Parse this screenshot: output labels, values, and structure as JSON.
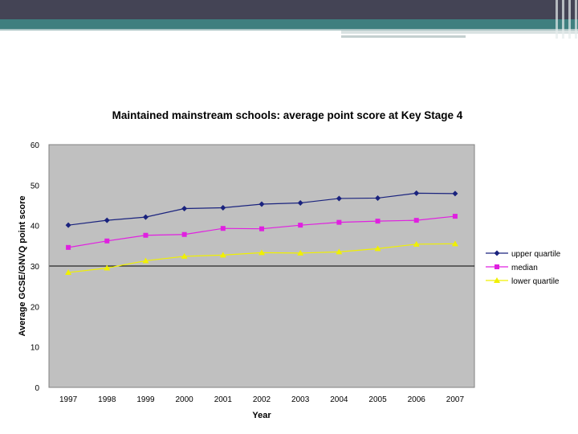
{
  "chart_data": {
    "type": "line",
    "title": "Maintained mainstream schools: average point score at Key Stage 4",
    "xlabel": "Year",
    "ylabel": "Average GCSE/GNVQ point score",
    "categories": [
      "1997",
      "1998",
      "1999",
      "2000",
      "2001",
      "2002",
      "2003",
      "2004",
      "2005",
      "2006",
      "2007"
    ],
    "ylim": [
      0,
      60
    ],
    "yticks": [
      0,
      10,
      20,
      30,
      40,
      50,
      60
    ],
    "grid": false,
    "legend": "right",
    "series": [
      {
        "name": "upper quartile",
        "color": "#1a237e",
        "marker": "diamond",
        "values": [
          40.1,
          41.3,
          42.1,
          44.2,
          44.4,
          45.3,
          45.6,
          46.7,
          46.8,
          48.0,
          47.9
        ]
      },
      {
        "name": "median",
        "color": "#e020e0",
        "marker": "square",
        "values": [
          34.6,
          36.2,
          37.6,
          37.8,
          39.3,
          39.2,
          40.1,
          40.8,
          41.1,
          41.3,
          42.3
        ]
      },
      {
        "name": "lower quartile",
        "color": "#f0f000",
        "marker": "triangle",
        "values": [
          28.4,
          29.5,
          31.3,
          32.4,
          32.7,
          33.3,
          33.2,
          33.5,
          34.3,
          35.4,
          35.5
        ]
      }
    ],
    "reference_line": 30,
    "plot_background": "#c0c0c0"
  }
}
